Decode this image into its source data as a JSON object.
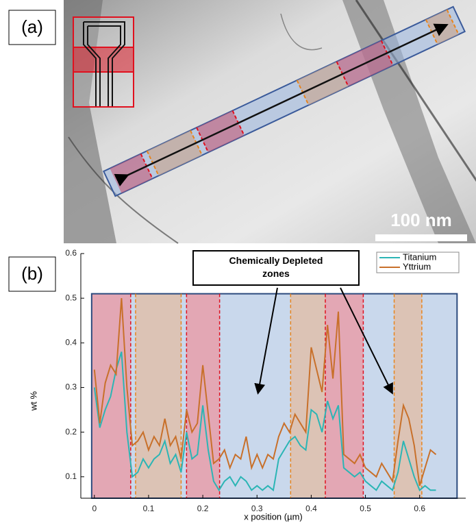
{
  "panel_a": {
    "label": "(a)",
    "scale_bar": "100 nm"
  },
  "chart_data": {
    "type": "line",
    "panel_label": "(b)",
    "annotation": "Chemically Depleted zones",
    "x_label": "x position (µm)",
    "y_label": "wt %",
    "xlim": [
      -0.025,
      0.685
    ],
    "ylim": [
      0.052,
      0.6
    ],
    "xticks": [
      0,
      0.1,
      0.2,
      0.3,
      0.4,
      0.5,
      0.6
    ],
    "yticks": [
      0.1,
      0.2,
      0.3,
      0.4,
      0.5,
      0.6
    ],
    "legend": "top-right",
    "zones": [
      {
        "start": -0.005,
        "end": 0.067,
        "color": "#e3a7b4"
      },
      {
        "start": 0.067,
        "end": 0.076,
        "color": "#c9d8ec"
      },
      {
        "start": 0.076,
        "end": 0.16,
        "color": "#dcc3b5"
      },
      {
        "start": 0.16,
        "end": 0.17,
        "color": "#c9d8ec"
      },
      {
        "start": 0.17,
        "end": 0.231,
        "color": "#e3a7b4"
      },
      {
        "start": 0.231,
        "end": 0.362,
        "color": "#c9d8ec"
      },
      {
        "start": 0.362,
        "end": 0.426,
        "color": "#dcc3b5"
      },
      {
        "start": 0.426,
        "end": 0.496,
        "color": "#e3a7b4"
      },
      {
        "start": 0.496,
        "end": 0.553,
        "color": "#c9d8ec"
      },
      {
        "start": 0.553,
        "end": 0.604,
        "color": "#dcc3b5"
      },
      {
        "start": 0.604,
        "end": 0.669,
        "color": "#c9d8ec"
      }
    ],
    "zone_top": 0.51,
    "boundaries": [
      {
        "x": 0.067,
        "color": "#e0101e"
      },
      {
        "x": 0.076,
        "color": "#e8841c"
      },
      {
        "x": 0.16,
        "color": "#e8841c"
      },
      {
        "x": 0.17,
        "color": "#e0101e"
      },
      {
        "x": 0.231,
        "color": "#e0101e"
      },
      {
        "x": 0.362,
        "color": "#e8841c"
      },
      {
        "x": 0.426,
        "color": "#e0101e"
      },
      {
        "x": 0.496,
        "color": "#e0101e"
      },
      {
        "x": 0.553,
        "color": "#e8841c"
      },
      {
        "x": 0.604,
        "color": "#e8841c"
      }
    ],
    "x": [
      0,
      0.01,
      0.02,
      0.03,
      0.04,
      0.05,
      0.06,
      0.07,
      0.08,
      0.09,
      0.1,
      0.11,
      0.12,
      0.13,
      0.14,
      0.15,
      0.16,
      0.17,
      0.18,
      0.19,
      0.2,
      0.21,
      0.22,
      0.23,
      0.24,
      0.25,
      0.26,
      0.27,
      0.28,
      0.29,
      0.3,
      0.31,
      0.32,
      0.33,
      0.34,
      0.35,
      0.36,
      0.37,
      0.38,
      0.39,
      0.4,
      0.41,
      0.42,
      0.43,
      0.44,
      0.45,
      0.46,
      0.47,
      0.48,
      0.49,
      0.5,
      0.51,
      0.52,
      0.53,
      0.54,
      0.55,
      0.56,
      0.57,
      0.58,
      0.59,
      0.6,
      0.61,
      0.62,
      0.63
    ],
    "series": [
      {
        "name": "Titanium",
        "color": "#2bb5b5",
        "values": [
          0.3,
          0.21,
          0.25,
          0.28,
          0.34,
          0.38,
          0.2,
          0.1,
          0.11,
          0.14,
          0.12,
          0.14,
          0.15,
          0.18,
          0.13,
          0.15,
          0.11,
          0.2,
          0.14,
          0.15,
          0.26,
          0.16,
          0.09,
          0.07,
          0.09,
          0.1,
          0.08,
          0.1,
          0.09,
          0.07,
          0.08,
          0.07,
          0.08,
          0.07,
          0.14,
          0.16,
          0.18,
          0.19,
          0.17,
          0.16,
          0.25,
          0.24,
          0.2,
          0.27,
          0.23,
          0.26,
          0.12,
          0.11,
          0.1,
          0.11,
          0.09,
          0.08,
          0.07,
          0.09,
          0.08,
          0.07,
          0.11,
          0.18,
          0.14,
          0.1,
          0.07,
          0.08,
          0.07,
          0.07
        ]
      },
      {
        "name": "Yttrium",
        "color": "#c8702a",
        "values": [
          0.34,
          0.22,
          0.31,
          0.35,
          0.33,
          0.5,
          0.3,
          0.17,
          0.18,
          0.2,
          0.16,
          0.19,
          0.17,
          0.23,
          0.17,
          0.19,
          0.14,
          0.25,
          0.2,
          0.22,
          0.35,
          0.24,
          0.13,
          0.14,
          0.16,
          0.12,
          0.15,
          0.14,
          0.19,
          0.12,
          0.15,
          0.12,
          0.15,
          0.14,
          0.19,
          0.22,
          0.2,
          0.24,
          0.22,
          0.2,
          0.39,
          0.34,
          0.29,
          0.44,
          0.32,
          0.47,
          0.15,
          0.14,
          0.13,
          0.15,
          0.12,
          0.11,
          0.1,
          0.13,
          0.11,
          0.09,
          0.18,
          0.26,
          0.23,
          0.17,
          0.08,
          0.12,
          0.16,
          0.15
        ]
      }
    ]
  }
}
